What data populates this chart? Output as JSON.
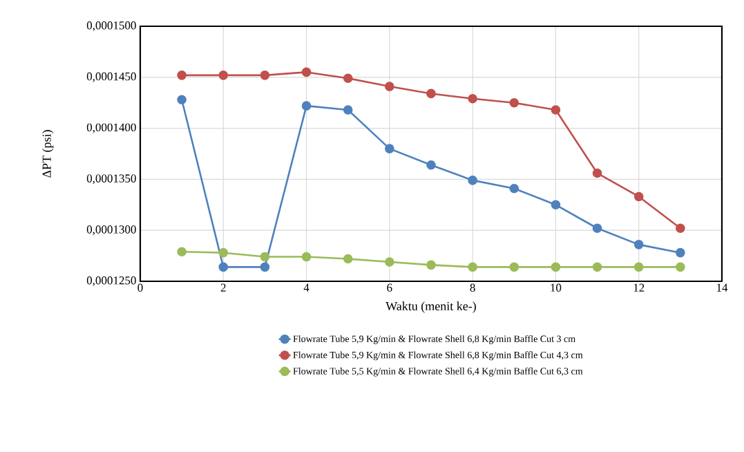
{
  "chart_data": {
    "type": "line",
    "xlabel": "Waktu (menit ke-)",
    "ylabel": "ΔPT (psi)",
    "x": [
      1,
      2,
      3,
      4,
      5,
      6,
      7,
      8,
      9,
      10,
      11,
      12,
      13
    ],
    "series": [
      {
        "name": "Flowrate Tube 5,9 Kg/min  & Flowrate Shell 6,8 Kg/min Baffle Cut 3 cm",
        "color": "#4f81bd",
        "values": [
          0.0001428,
          0.0001264,
          0.0001264,
          0.0001422,
          0.0001418,
          0.000138,
          0.0001364,
          0.0001349,
          0.0001341,
          0.0001325,
          0.0001302,
          0.0001286,
          0.0001278
        ]
      },
      {
        "name": "Flowrate Tube 5,9 Kg/min  & Flowrate Shell 6,8 Kg/min Baffle Cut 4,3 cm",
        "color": "#c0504d",
        "values": [
          0.0001452,
          0.0001452,
          0.0001452,
          0.0001455,
          0.0001449,
          0.0001441,
          0.0001434,
          0.0001429,
          0.0001425,
          0.0001418,
          0.0001356,
          0.0001333,
          0.0001302
        ]
      },
      {
        "name": "Flowrate Tube 5,5 Kg/min  & Flowrate Shell 6,4 Kg/min Baffle Cut 6,3 cm",
        "color": "#9bbb59",
        "values": [
          0.0001279,
          0.0001278,
          0.0001274,
          0.0001274,
          0.0001272,
          0.0001269,
          0.0001266,
          0.0001264,
          0.0001264,
          0.0001264,
          0.0001264,
          0.0001264,
          0.0001264
        ]
      }
    ],
    "xlim": [
      0,
      14
    ],
    "xticks": [
      0,
      2,
      4,
      6,
      8,
      10,
      12,
      14
    ],
    "ylim": [
      0.000125,
      0.00015
    ],
    "yticks": [
      {
        "value": 0.000125,
        "label": "0,0001250"
      },
      {
        "value": 0.00013,
        "label": "0,0001300"
      },
      {
        "value": 0.000135,
        "label": "0,0001350"
      },
      {
        "value": 0.00014,
        "label": "0,0001400"
      },
      {
        "value": 0.000145,
        "label": "0,0001450"
      },
      {
        "value": 0.00015,
        "label": "0,0001500"
      }
    ],
    "grid": true,
    "legend": "bottom",
    "marker": "circle",
    "line_style": "solid"
  }
}
